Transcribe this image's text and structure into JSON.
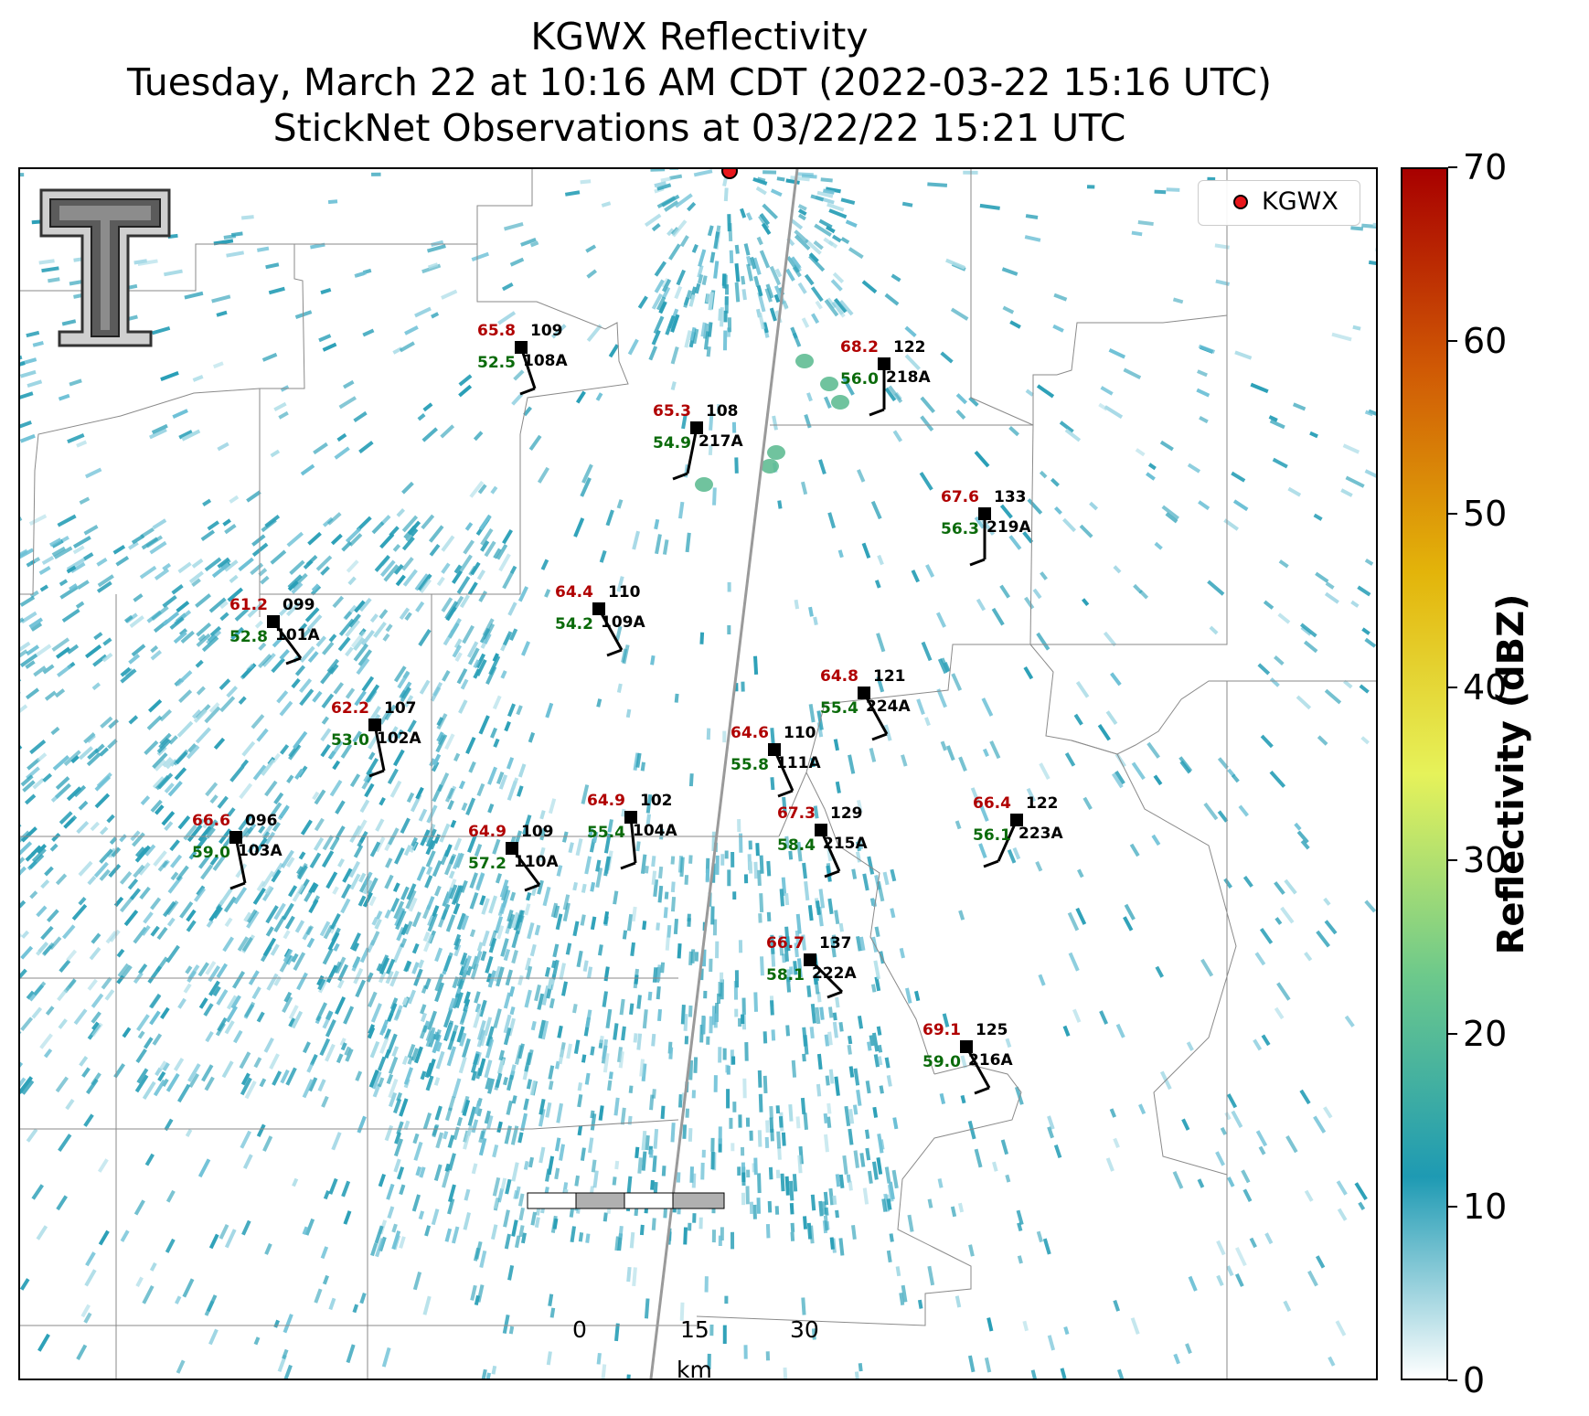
{
  "title": {
    "line1": "KGWX Reflectivity",
    "line2": "Tuesday, March 22 at 10:16 AM CDT (2022-03-22 15:16 UTC)",
    "line3": "StickNet Observations at 03/22/22 15:21 UTC"
  },
  "legend": {
    "label": "KGWX",
    "marker_color": "#e8161b"
  },
  "colorbar": {
    "title": "Reflectivity (dBZ)",
    "ticks": [
      "0",
      "10",
      "20",
      "30",
      "40",
      "50",
      "60",
      "70"
    ],
    "range": [
      0,
      70
    ],
    "colors": [
      "#ffffff",
      "#1e9ab3",
      "#6dc98b",
      "#e6f25a",
      "#e3b40a",
      "#d05a05",
      "#a80000"
    ]
  },
  "scale_bar": {
    "ticks": [
      "0",
      "15",
      "30"
    ],
    "unit": "km"
  },
  "radar_site": {
    "name": "KGWX",
    "color": "#e8161b"
  },
  "stations": [
    {
      "temp": "65.8",
      "dew": "52.5",
      "dir": "109",
      "id": "108A",
      "wind": [
        0.3,
        0.9
      ]
    },
    {
      "temp": "68.2",
      "dew": "56.0",
      "dir": "122",
      "id": "218A",
      "wind": [
        0.0,
        1.0
      ]
    },
    {
      "temp": "65.3",
      "dew": "54.9",
      "dir": "108",
      "id": "217A",
      "wind": [
        -0.2,
        1.0
      ]
    },
    {
      "temp": "67.6",
      "dew": "56.3",
      "dir": "133",
      "id": "219A",
      "wind": [
        0.0,
        1.0
      ]
    },
    {
      "temp": "61.2",
      "dew": "52.8",
      "dir": "099",
      "id": "101A",
      "wind": [
        0.6,
        0.8
      ]
    },
    {
      "temp": "64.4",
      "dew": "54.2",
      "dir": "110",
      "id": "109A",
      "wind": [
        0.5,
        0.9
      ]
    },
    {
      "temp": "64.8",
      "dew": "55.4",
      "dir": "121",
      "id": "224A",
      "wind": [
        0.5,
        0.9
      ]
    },
    {
      "temp": "62.2",
      "dew": "53.0",
      "dir": "107",
      "id": "102A",
      "wind": [
        0.2,
        1.0
      ]
    },
    {
      "temp": "64.6",
      "dew": "55.8",
      "dir": "110",
      "id": "111A",
      "wind": [
        0.4,
        0.9
      ]
    },
    {
      "temp": "64.9",
      "dew": "55.4",
      "dir": "102",
      "id": "104A",
      "wind": [
        0.1,
        1.0
      ]
    },
    {
      "temp": "67.3",
      "dew": "58.4",
      "dir": "129",
      "id": "215A",
      "wind": [
        0.4,
        0.9
      ]
    },
    {
      "temp": "66.4",
      "dew": "56.1",
      "dir": "122",
      "id": "223A",
      "wind": [
        -0.4,
        0.9
      ]
    },
    {
      "temp": "66.6",
      "dew": "59.0",
      "dir": "096",
      "id": "103A",
      "wind": [
        0.2,
        1.0
      ]
    },
    {
      "temp": "64.9",
      "dew": "57.2",
      "dir": "109",
      "id": "110A",
      "wind": [
        0.6,
        0.8
      ]
    },
    {
      "temp": "66.7",
      "dew": "58.1",
      "dir": "137",
      "id": "222A",
      "wind": [
        0.7,
        0.7
      ]
    },
    {
      "temp": "69.1",
      "dew": "59.0",
      "dir": "125",
      "id": "216A",
      "wind": [
        0.5,
        0.9
      ]
    }
  ]
}
